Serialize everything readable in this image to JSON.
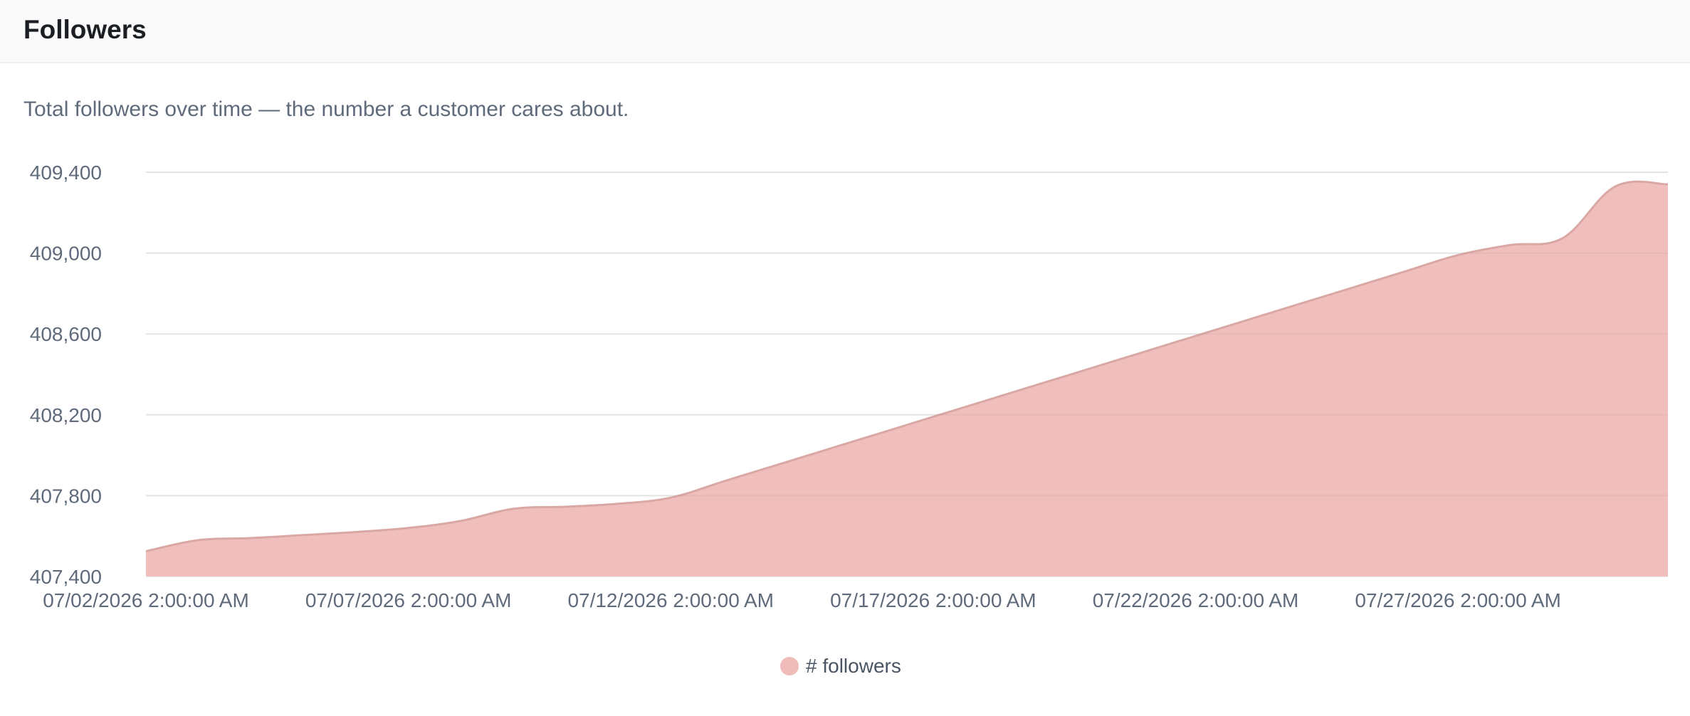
{
  "header": {
    "title": "Followers"
  },
  "description": "Total followers over time — the number a customer cares about.",
  "colors": {
    "area_fill": "#efbcb9",
    "area_stroke": "#d9a8a4",
    "grid": "#ececec",
    "tick_text": "#5f6b7a",
    "legend_swatch": "#efbcb9"
  },
  "chart_data": {
    "type": "area",
    "title": "",
    "xlabel": "",
    "ylabel": "",
    "ylim": [
      407400,
      409400
    ],
    "yticks": [
      407400,
      407800,
      408200,
      408600,
      409000,
      409400
    ],
    "ytick_labels": [
      "407,400",
      "407,800",
      "408,200",
      "408,600",
      "409,000",
      "409,400"
    ],
    "xlim": [
      "07/02/2026 2:00:00 AM",
      "07/31/2026 2:00:00 AM"
    ],
    "xticks": [
      "07/02/2026 2:00:00 AM",
      "07/07/2026 2:00:00 AM",
      "07/12/2026 2:00:00 AM",
      "07/17/2026 2:00:00 AM",
      "07/22/2026 2:00:00 AM",
      "07/27/2026 2:00:00 AM"
    ],
    "grid": true,
    "legend_position": "bottom",
    "series": [
      {
        "name": "# followers",
        "x": [
          "07/02/2026 2:00:00 AM",
          "07/03/2026 2:00:00 AM",
          "07/04/2026 2:00:00 AM",
          "07/05/2026 2:00:00 AM",
          "07/06/2026 2:00:00 AM",
          "07/07/2026 2:00:00 AM",
          "07/08/2026 2:00:00 AM",
          "07/09/2026 2:00:00 AM",
          "07/10/2026 2:00:00 AM",
          "07/11/2026 2:00:00 AM",
          "07/12/2026 2:00:00 AM",
          "07/13/2026 2:00:00 AM",
          "07/14/2026 2:00:00 AM",
          "07/15/2026 2:00:00 AM",
          "07/16/2026 2:00:00 AM",
          "07/17/2026 2:00:00 AM",
          "07/18/2026 2:00:00 AM",
          "07/19/2026 2:00:00 AM",
          "07/20/2026 2:00:00 AM",
          "07/21/2026 2:00:00 AM",
          "07/22/2026 2:00:00 AM",
          "07/23/2026 2:00:00 AM",
          "07/24/2026 2:00:00 AM",
          "07/25/2026 2:00:00 AM",
          "07/26/2026 2:00:00 AM",
          "07/27/2026 2:00:00 AM",
          "07/28/2026 2:00:00 AM",
          "07/29/2026 2:00:00 AM",
          "07/30/2026 2:00:00 AM",
          "07/31/2026 2:00:00 AM"
        ],
        "values": [
          407525,
          407580,
          407590,
          407605,
          407620,
          407640,
          407675,
          407735,
          407745,
          407760,
          407790,
          407870,
          407950,
          408030,
          408110,
          408190,
          408270,
          408350,
          408430,
          408510,
          408590,
          408670,
          408750,
          408830,
          408910,
          408990,
          409040,
          409075,
          409330,
          409340
        ]
      }
    ]
  }
}
